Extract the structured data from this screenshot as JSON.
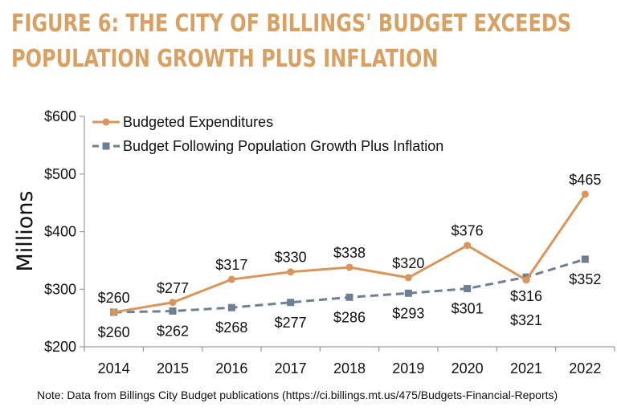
{
  "title_lines": [
    "FIGURE 6: THE CITY OF BILLINGS' BUDGET EXCEEDS",
    "POPULATION GROWTH PLUS INFLATION"
  ],
  "note": "Note: Data from Billings City Budget publications (https://ci.billings.mt.us/475/Budgets-Financial-Reports)",
  "colors": {
    "title": "#d9a064",
    "expenditures": "#d9955a",
    "population": "#6e7e93",
    "axis": "#999999"
  },
  "chart_data": {
    "type": "line",
    "categories": [
      "2014",
      "2015",
      "2016",
      "2017",
      "2018",
      "2019",
      "2020",
      "2021",
      "2022"
    ],
    "ylabel": "Millions",
    "xlabel": "",
    "ylim": [
      200,
      600
    ],
    "yticks": [
      200,
      300,
      400,
      500,
      600
    ],
    "ytick_labels": [
      "$200",
      "$300",
      "$400",
      "$500",
      "$600"
    ],
    "grid": false,
    "legend_position": "top-left",
    "series": [
      {
        "name": "Budgeted Expenditures",
        "values": [
          260,
          277,
          317,
          330,
          338,
          320,
          376,
          316,
          465
        ],
        "labels": [
          "$260",
          "$277",
          "$317",
          "$330",
          "$338",
          "$320",
          "$376",
          "$316",
          "$465"
        ],
        "color": "#d9955a",
        "style": "solid",
        "marker": "circle"
      },
      {
        "name": "Budget Following Population Growth Plus Inflation",
        "values": [
          260,
          262,
          268,
          277,
          286,
          293,
          301,
          321,
          352
        ],
        "labels": [
          "$260",
          "$262",
          "$268",
          "$277",
          "$286",
          "$293",
          "$301",
          "$321",
          "$352"
        ],
        "color": "#6e7e93",
        "style": "dashed",
        "marker": "square"
      }
    ]
  }
}
